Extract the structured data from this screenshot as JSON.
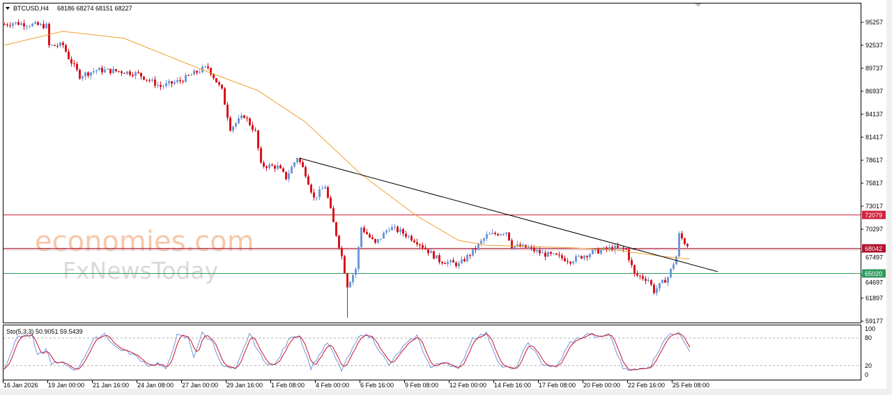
{
  "header": {
    "dropdown_icon": "triangle-down-icon",
    "symbol": "BTCUSD,H4",
    "ohlc": "68186 68274 68151 68227"
  },
  "watermark": {
    "line1": "economies.com",
    "line2": "FxNewsToday"
  },
  "colors": {
    "bull": "#6f97d8",
    "bear": "#d8121b",
    "ma": "#f0a030",
    "resistance": "#d0203a",
    "current": "#b0102a",
    "support": "#2e9a5e",
    "trendline": "#000000",
    "stoch_k": "#6f97d8",
    "stoch_d": "#c8102e"
  },
  "chart_data": {
    "type": "candlestick",
    "symbol": "BTCUSD",
    "timeframe": "H4",
    "y_ticks": [
      "95257",
      "92537",
      "89737",
      "86937",
      "84137",
      "81417",
      "78617",
      "75817",
      "73017",
      "70297",
      "67497",
      "64697",
      "61897",
      "59177"
    ],
    "ylim": [
      59177,
      95257
    ],
    "x_ticks": [
      "16 Jan 2026",
      "19 Jan 00:00",
      "21 Jan 16:00",
      "24 Jan 08:00",
      "27 Jan 00:00",
      "29 Jan 16:00",
      "1 Feb 08:00",
      "4 Feb 00:00",
      "6 Feb 16:00",
      "9 Feb 08:00",
      "12 Feb 00:00",
      "14 Feb 16:00",
      "17 Feb 08:00",
      "20 Feb 00:00",
      "22 Feb 16:00",
      "25 Feb 08:00"
    ],
    "close_path": [
      [
        "2026-01-16 12:00",
        95000
      ],
      [
        "2026-01-17 00:00",
        95200
      ],
      [
        "2026-01-19 00:00",
        94800
      ],
      [
        "2026-01-19 04:00",
        92400
      ],
      [
        "2026-01-20 00:00",
        92500
      ],
      [
        "2026-01-20 08:00",
        91000
      ],
      [
        "2026-01-21 00:00",
        88800
      ],
      [
        "2026-01-22 00:00",
        89500
      ],
      [
        "2026-01-23 16:00",
        89300
      ],
      [
        "2026-01-24 12:00",
        89000
      ],
      [
        "2026-01-25 20:00",
        87500
      ],
      [
        "2026-01-27 00:00",
        88200
      ],
      [
        "2026-01-28 08:00",
        89600
      ],
      [
        "2026-01-28 16:00",
        89800
      ],
      [
        "2026-01-29 12:00",
        87000
      ],
      [
        "2026-01-30 00:00",
        82500
      ],
      [
        "2026-01-30 20:00",
        84000
      ],
      [
        "2026-01-31 12:00",
        82000
      ],
      [
        "2026-01-31 20:00",
        78000
      ],
      [
        "2026-02-01 20:00",
        77800
      ],
      [
        "2026-02-02 08:00",
        76500
      ],
      [
        "2026-02-03 00:00",
        79000
      ],
      [
        "2026-02-03 12:00",
        77000
      ],
      [
        "2026-02-04 00:00",
        74000
      ],
      [
        "2026-02-04 16:00",
        75500
      ],
      [
        "2026-02-05 04:00",
        71000
      ],
      [
        "2026-02-05 16:00",
        67000
      ],
      [
        "2026-02-06 00:00",
        63500
      ],
      [
        "2026-02-06 12:00",
        65500
      ],
      [
        "2026-02-06 20:00",
        70500
      ],
      [
        "2026-02-07 16:00",
        68500
      ],
      [
        "2026-02-08 12:00",
        70500
      ],
      [
        "2026-02-09 04:00",
        70000
      ],
      [
        "2026-02-10 04:00",
        68800
      ],
      [
        "2026-02-11 12:00",
        66500
      ],
      [
        "2026-02-12 16:00",
        66000
      ],
      [
        "2026-02-13 12:00",
        67600
      ],
      [
        "2026-02-14 08:00",
        69500
      ],
      [
        "2026-02-15 12:00",
        70000
      ],
      [
        "2026-02-15 20:00",
        68300
      ],
      [
        "2026-02-16 20:00",
        68000
      ],
      [
        "2026-02-17 16:00",
        67300
      ],
      [
        "2026-02-18 12:00",
        67000
      ],
      [
        "2026-02-19 08:00",
        66500
      ],
      [
        "2026-02-20 16:00",
        67500
      ],
      [
        "2026-02-21 20:00",
        68000
      ],
      [
        "2026-02-22 16:00",
        67800
      ],
      [
        "2026-02-23 04:00",
        64800
      ],
      [
        "2026-02-24 00:00",
        64200
      ],
      [
        "2026-02-24 08:00",
        62800
      ],
      [
        "2026-02-25 04:00",
        64500
      ],
      [
        "2026-02-25 16:00",
        67000
      ],
      [
        "2026-02-25 20:00",
        69600
      ],
      [
        "2026-02-26 08:00",
        68227
      ]
    ],
    "spike_low": [
      "2026-02-06 00:00",
      59600
    ],
    "moving_average": [
      [
        "2026-01-16 12:00",
        92482
      ],
      [
        "2026-01-20 00:00",
        94164
      ],
      [
        "2026-01-23 16:00",
        93323
      ],
      [
        "2026-01-28 08:00",
        89538
      ],
      [
        "2026-01-31 16:00",
        87015
      ],
      [
        "2026-02-03 12:00",
        83231
      ],
      [
        "2026-02-06 20:00",
        76923
      ],
      [
        "2026-02-10 04:00",
        71877
      ],
      [
        "2026-02-12 16:00",
        68934
      ],
      [
        "2026-02-14 08:00",
        68345
      ],
      [
        "2026-02-18 12:00",
        68093
      ],
      [
        "2026-02-21 20:00",
        67840
      ],
      [
        "2026-02-24 20:00",
        67000
      ],
      [
        "2026-02-26 12:00",
        66663
      ]
    ],
    "trendline": {
      "from": [
        "2026-02-03 04:00",
        78860
      ],
      "to": [
        "2026-02-28 04:00",
        65150
      ]
    },
    "levels": [
      {
        "price": 72079,
        "label": "72079",
        "kind": "resistance"
      },
      {
        "price": 68042,
        "label": "68042",
        "kind": "current"
      },
      {
        "price": 65020,
        "label": "65020",
        "kind": "support"
      }
    ],
    "stochastic": {
      "label": "Sto(5,3,3) 50.9051 59.5439",
      "y_ticks": [
        "100",
        "80",
        "20",
        "0"
      ],
      "levels": [
        80,
        20
      ],
      "k_path": [
        [
          "2026-01-16 12:00",
          15
        ],
        [
          "2026-01-17 08:00",
          85
        ],
        [
          "2026-01-18 04:00",
          85
        ],
        [
          "2026-01-18 12:00",
          40
        ],
        [
          "2026-01-19 00:00",
          55
        ],
        [
          "2026-01-19 08:00",
          25
        ],
        [
          "2026-01-20 00:00",
          25
        ],
        [
          "2026-01-20 20:00",
          10
        ],
        [
          "2026-01-21 20:00",
          75
        ],
        [
          "2026-01-22 12:00",
          90
        ],
        [
          "2026-01-23 04:00",
          60
        ],
        [
          "2026-01-24 04:00",
          45
        ],
        [
          "2026-01-25 04:00",
          20
        ],
        [
          "2026-01-25 16:00",
          25
        ],
        [
          "2026-01-26 04:00",
          10
        ],
        [
          "2026-01-26 20:00",
          85
        ],
        [
          "2026-01-27 12:00",
          80
        ],
        [
          "2026-01-27 20:00",
          40
        ],
        [
          "2026-01-28 08:00",
          90
        ],
        [
          "2026-01-29 00:00",
          70
        ],
        [
          "2026-01-29 12:00",
          20
        ],
        [
          "2026-01-30 08:00",
          10
        ],
        [
          "2026-01-31 04:00",
          90
        ],
        [
          "2026-02-01 00:00",
          30
        ],
        [
          "2026-02-01 16:00",
          20
        ],
        [
          "2026-02-02 16:00",
          85
        ],
        [
          "2026-02-03 04:00",
          85
        ],
        [
          "2026-02-03 20:00",
          15
        ],
        [
          "2026-02-04 20:00",
          70
        ],
        [
          "2026-02-05 16:00",
          10
        ],
        [
          "2026-02-06 20:00",
          90
        ],
        [
          "2026-02-07 12:00",
          80
        ],
        [
          "2026-02-08 12:00",
          20
        ],
        [
          "2026-02-09 08:00",
          60
        ],
        [
          "2026-02-10 04:00",
          85
        ],
        [
          "2026-02-11 00:00",
          15
        ],
        [
          "2026-02-11 20:00",
          30
        ],
        [
          "2026-02-12 16:00",
          10
        ],
        [
          "2026-02-13 12:00",
          80
        ],
        [
          "2026-02-14 08:00",
          90
        ],
        [
          "2026-02-15 04:00",
          20
        ],
        [
          "2026-02-16 00:00",
          10
        ],
        [
          "2026-02-16 20:00",
          70
        ],
        [
          "2026-02-17 16:00",
          25
        ],
        [
          "2026-02-18 12:00",
          15
        ],
        [
          "2026-02-19 08:00",
          70
        ],
        [
          "2026-02-20 12:00",
          90
        ],
        [
          "2026-02-21 00:00",
          80
        ],
        [
          "2026-02-21 16:00",
          90
        ],
        [
          "2026-02-22 12:00",
          15
        ],
        [
          "2026-02-23 08:00",
          10
        ],
        [
          "2026-02-24 04:00",
          20
        ],
        [
          "2026-02-25 00:00",
          80
        ],
        [
          "2026-02-25 20:00",
          95
        ],
        [
          "2026-02-26 12:00",
          50.9
        ]
      ],
      "last_k": 50.9051,
      "last_d": 59.5439
    }
  }
}
